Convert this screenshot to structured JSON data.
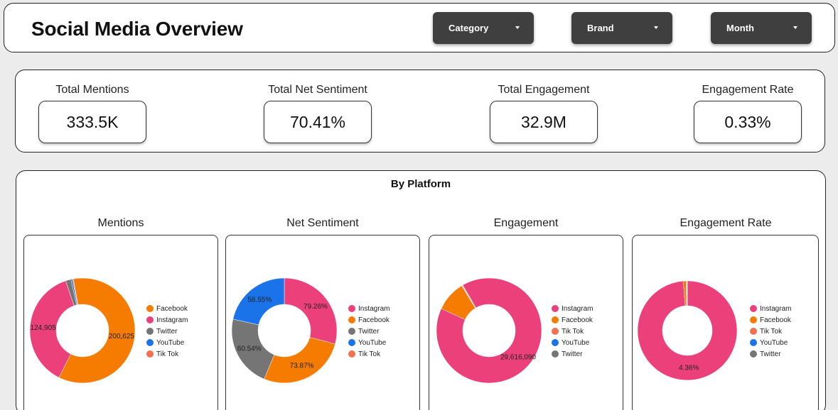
{
  "header": {
    "title": "Social Media Overview",
    "filters": [
      {
        "label": "Category"
      },
      {
        "label": "Brand"
      },
      {
        "label": "Month"
      }
    ]
  },
  "kpis": [
    {
      "title": "Total Mentions",
      "value": "333.5K"
    },
    {
      "title": "Total Net Sentiment",
      "value": "70.41%"
    },
    {
      "title": "Total Engagement",
      "value": "32.9M"
    },
    {
      "title": "Engagement Rate",
      "value": "0.33%"
    }
  ],
  "platform": {
    "title": "By Platform",
    "colors": {
      "Facebook": "#f57c00",
      "Instagram": "#ec407a",
      "Twitter": "#757575",
      "YouTube": "#1a73e8",
      "Tik Tok": "#f4704f"
    },
    "charts": [
      {
        "title": "Mentions",
        "legend": [
          "Facebook",
          "Instagram",
          "Twitter",
          "YouTube",
          "Tik Tok"
        ],
        "slices": [
          {
            "name": "Facebook",
            "value": 200625,
            "label": "200,625"
          },
          {
            "name": "Instagram",
            "value": 124905,
            "label": "124,905"
          },
          {
            "name": "Twitter",
            "value": 5500,
            "label": ""
          },
          {
            "name": "YouTube",
            "value": 1600,
            "label": ""
          },
          {
            "name": "Tik Tok",
            "value": 900,
            "label": ""
          }
        ]
      },
      {
        "title": "Net Sentiment",
        "legend": [
          "Instagram",
          "Facebook",
          "Twitter",
          "YouTube",
          "Tik Tok"
        ],
        "slices": [
          {
            "name": "Instagram",
            "value": 79.26,
            "label": "79.26%"
          },
          {
            "name": "Facebook",
            "value": 73.87,
            "label": "73.87%"
          },
          {
            "name": "Twitter",
            "value": 60.54,
            "label": "60.54%"
          },
          {
            "name": "YouTube",
            "value": 58.55,
            "label": "58.55%"
          }
        ]
      },
      {
        "title": "Engagement",
        "legend": [
          "Instagram",
          "Facebook",
          "Tik Tok",
          "YouTube",
          "Twitter"
        ],
        "slices": [
          {
            "name": "Instagram",
            "value": 29616090,
            "label": "29,616,090"
          },
          {
            "name": "Facebook",
            "value": 3100000,
            "label": ""
          },
          {
            "name": "Tik Tok",
            "value": 60000,
            "label": ""
          },
          {
            "name": "YouTube",
            "value": 40000,
            "label": ""
          },
          {
            "name": "Twitter",
            "value": 20000,
            "label": ""
          }
        ]
      },
      {
        "title": "Engagement Rate",
        "legend": [
          "Instagram",
          "Facebook",
          "Tik Tok",
          "YouTube",
          "Twitter"
        ],
        "slices": [
          {
            "name": "Instagram",
            "value": 4.36,
            "label": "4.36%"
          },
          {
            "name": "Facebook",
            "value": 0.04,
            "label": ""
          },
          {
            "name": "Tik Tok",
            "value": 0.01,
            "label": ""
          },
          {
            "name": "YouTube",
            "value": 0.005,
            "label": ""
          },
          {
            "name": "Twitter",
            "value": 0.003,
            "label": ""
          }
        ]
      }
    ]
  }
}
